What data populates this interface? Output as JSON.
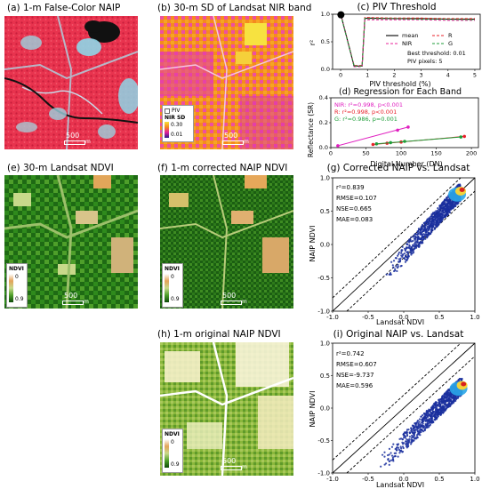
{
  "panels": {
    "a": {
      "title": "(a) 1-m False-Color NAIP",
      "scalebar": "500",
      "scalebar_unit": "m"
    },
    "b": {
      "title": "(b) 30-m SD of Landsat NIR band",
      "legend_piv": "PIV",
      "legend_title": "NIR SD",
      "legend_max": "0.30",
      "legend_min": "0.01",
      "scalebar": "500",
      "scalebar_unit": "m"
    },
    "c": {
      "title": "(c) PIV Threshold",
      "xlabel": "PIV threshold (%)",
      "ylabel": "r²",
      "best_threshold": "Best threshold: 0.01",
      "piv_pixels": "PIV pixels: 5"
    },
    "d": {
      "title": "(d) Regression for Each Band",
      "xlabel": "Digital Number (DN)",
      "ylabel": "Reflectance (SR)",
      "ann_nir": "NIR: r²=0.998, p<0.001",
      "ann_r": "R: r²=0.998, p<0.001",
      "ann_g": "G: r²=0.986, p=0.001"
    },
    "e": {
      "title": "(e) 30-m Landsat NDVI",
      "legend_title": "NDVI",
      "legend_max": "0",
      "legend_min": "0.9",
      "scalebar": "500",
      "scalebar_unit": "m"
    },
    "f": {
      "title": "(f) 1-m corrected NAIP NDVI",
      "legend_title": "NDVI",
      "legend_max": "0",
      "legend_min": "0.9",
      "scalebar": "500",
      "scalebar_unit": "m"
    },
    "g": {
      "title": "(g) Corrected NAIP vs. Landsat",
      "xlabel": "Landsat NDVI",
      "ylabel": "NAIP NDVI",
      "stats": [
        "r²=0.839",
        "RMSE=0.107",
        "NSE=0.665",
        "MAE=0.083"
      ]
    },
    "h": {
      "title": "(h) 1-m original NAIP NDVI",
      "legend_title": "NDVI",
      "legend_max": "0",
      "legend_min": "0.9",
      "scalebar": "500",
      "scalebar_unit": "m"
    },
    "i": {
      "title": "(i) Original NAIP vs. Landsat",
      "xlabel": "Landsat NDVI",
      "ylabel": "NAIP NDVI",
      "stats": [
        "r²=0.742",
        "RMSE=0.607",
        "NSE=-9.737",
        "MAE=0.596"
      ]
    }
  },
  "chart_data": [
    {
      "id": "c",
      "type": "line",
      "title": "(c) PIV Threshold",
      "xlabel": "PIV threshold (%)",
      "ylabel": "r²",
      "xlim": [
        -0.3,
        5.2
      ],
      "ylim": [
        0.0,
        1.0
      ],
      "x_ticks": [
        0,
        1,
        2,
        3,
        4,
        5
      ],
      "y_ticks": [
        0.0,
        0.5,
        1.0
      ],
      "legend": [
        "mean",
        "R",
        "NIR",
        "G"
      ],
      "legend_position": "center-right",
      "series": [
        {
          "name": "mean",
          "color": "#000000",
          "style": "solid",
          "x": [
            0,
            0.01,
            0.5,
            0.8,
            0.9,
            1.0,
            2,
            3,
            4,
            5
          ],
          "y": [
            0.99,
            0.99,
            0.06,
            0.06,
            0.92,
            0.93,
            0.92,
            0.92,
            0.91,
            0.91
          ]
        },
        {
          "name": "R",
          "color": "#e8202a",
          "style": "dashed",
          "x": [
            0,
            0.01,
            0.5,
            0.8,
            0.9,
            1.0,
            2,
            3,
            4,
            5
          ],
          "y": [
            0.99,
            0.99,
            0.07,
            0.07,
            0.94,
            0.94,
            0.93,
            0.93,
            0.92,
            0.92
          ]
        },
        {
          "name": "NIR",
          "color": "#e8209a",
          "style": "dashed",
          "x": [
            0,
            0.01,
            0.5,
            0.8,
            0.9,
            1.0,
            2,
            3,
            4,
            5
          ],
          "y": [
            0.99,
            0.99,
            0.05,
            0.05,
            0.9,
            0.9,
            0.9,
            0.9,
            0.89,
            0.89
          ]
        },
        {
          "name": "G",
          "color": "#1f9e3a",
          "style": "dashed",
          "x": [
            0,
            0.01,
            0.5,
            0.8,
            0.9,
            1.0,
            2,
            3,
            4,
            5
          ],
          "y": [
            0.98,
            0.98,
            0.06,
            0.06,
            0.92,
            0.92,
            0.92,
            0.91,
            0.91,
            0.9
          ]
        }
      ],
      "best_point": {
        "x": 0.01,
        "y": 0.99
      }
    },
    {
      "id": "d",
      "type": "scatter",
      "title": "(d) Regression for Each Band",
      "xlabel": "Digital Number (DN)",
      "ylabel": "Reflectance (SR)",
      "xlim": [
        0,
        210
      ],
      "ylim": [
        0.0,
        0.4
      ],
      "x_ticks": [
        0,
        50,
        100,
        150,
        200
      ],
      "y_ticks": [
        0.0,
        0.2,
        0.4
      ],
      "series": [
        {
          "name": "NIR",
          "color": "#e020c0",
          "x": [
            10,
            95,
            110
          ],
          "y": [
            0.015,
            0.14,
            0.165
          ]
        },
        {
          "name": "R",
          "color": "#e8202a",
          "x": [
            60,
            80,
            100,
            190
          ],
          "y": [
            0.025,
            0.035,
            0.045,
            0.09
          ]
        },
        {
          "name": "G",
          "color": "#1f9e3a",
          "x": [
            65,
            85,
            105,
            185
          ],
          "y": [
            0.03,
            0.04,
            0.05,
            0.085
          ]
        }
      ]
    },
    {
      "id": "g",
      "type": "scatter",
      "title": "(g) Corrected NAIP vs. Landsat",
      "xlabel": "Landsat NDVI",
      "ylabel": "NAIP NDVI",
      "xlim": [
        -1.0,
        1.0
      ],
      "ylim": [
        -1.0,
        1.0
      ],
      "x_ticks": [
        -1.0,
        -0.5,
        0.0,
        0.5,
        1.0
      ],
      "y_ticks": [
        -1.0,
        -0.5,
        0.0,
        0.5,
        1.0
      ],
      "lines": [
        "1:1 solid",
        "±0.2 dashed"
      ],
      "cloud": {
        "x_range": [
          -0.25,
          0.9
        ],
        "y_range": [
          -0.45,
          0.9
        ],
        "dense_center": [
          0.8,
          0.8
        ]
      }
    },
    {
      "id": "i",
      "type": "scatter",
      "title": "(i) Original NAIP vs. Landsat",
      "xlabel": "Landsat NDVI",
      "ylabel": "NAIP NDVI",
      "xlim": [
        -1.0,
        1.0
      ],
      "ylim": [
        -1.0,
        1.0
      ],
      "x_ticks": [
        -1.0,
        -0.5,
        0.0,
        0.5,
        1.0
      ],
      "y_ticks": [
        -1.0,
        -0.5,
        0.0,
        0.5,
        1.0
      ],
      "lines": [
        "1:1 solid",
        "±0.2 dashed"
      ],
      "cloud": {
        "x_range": [
          -0.35,
          0.9
        ],
        "y_range": [
          -0.9,
          0.45
        ],
        "dense_center": [
          0.82,
          0.35
        ]
      }
    }
  ]
}
